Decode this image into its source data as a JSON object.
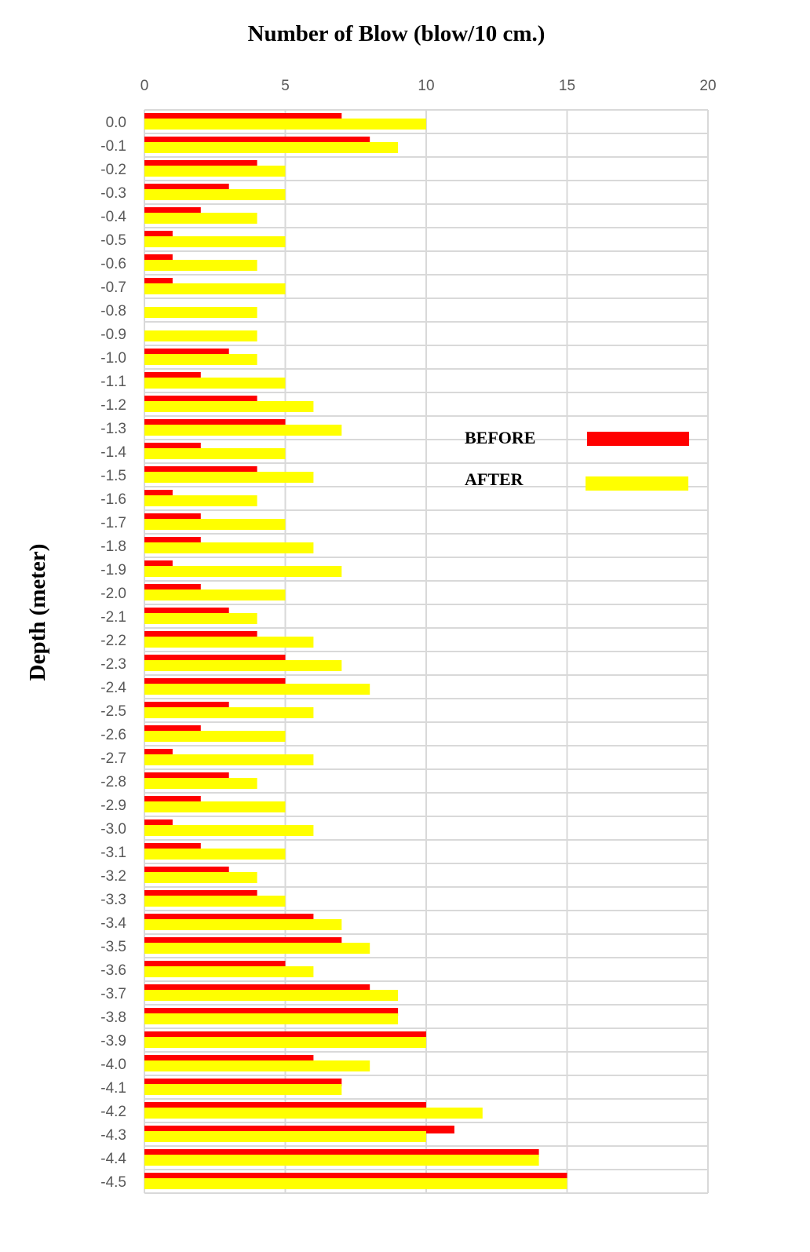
{
  "chart_data": {
    "type": "bar",
    "orientation": "horizontal",
    "title": "Number of Blow  (blow/10 cm.)",
    "xlabel": "Number of Blow  (blow/10 cm.)",
    "ylabel": "Depth (meter)",
    "xlim": [
      0,
      20
    ],
    "x_ticks": [
      "0",
      "5",
      "10",
      "15",
      "20"
    ],
    "x_axis_position": "top",
    "grid": true,
    "legend_position": "right",
    "categories": [
      "0.0",
      "-0.1",
      "-0.2",
      "-0.3",
      "-0.4",
      "-0.5",
      "-0.6",
      "-0.7",
      "-0.8",
      "-0.9",
      "-1.0",
      "-1.1",
      "-1.2",
      "-1.3",
      "-1.4",
      "-1.5",
      "-1.6",
      "-1.7",
      "-1.8",
      "-1.9",
      "-2.0",
      "-2.1",
      "-2.2",
      "-2.3",
      "-2.4",
      "-2.5",
      "-2.6",
      "-2.7",
      "-2.8",
      "-2.9",
      "-3.0",
      "-3.1",
      "-3.2",
      "-3.3",
      "-3.4",
      "-3.5",
      "-3.6",
      "-3.7",
      "-3.8",
      "-3.9",
      "-4.0",
      "-4.1",
      "-4.2",
      "-4.3",
      "-4.4",
      "-4.5"
    ],
    "series": [
      {
        "name": "BEFORE",
        "color": "#ff0000",
        "values": [
          7,
          8,
          4,
          3,
          2,
          1,
          1,
          1,
          0,
          0,
          3,
          2,
          4,
          5,
          2,
          4,
          1,
          2,
          2,
          1,
          2,
          3,
          4,
          5,
          5,
          3,
          2,
          1,
          3,
          2,
          1,
          2,
          3,
          4,
          6,
          7,
          5,
          8,
          9,
          10,
          6,
          7,
          10,
          11,
          14,
          15
        ]
      },
      {
        "name": "AFTER",
        "color": "#ffff00",
        "values": [
          10,
          9,
          5,
          5,
          4,
          5,
          4,
          5,
          4,
          4,
          4,
          5,
          6,
          7,
          5,
          6,
          4,
          5,
          6,
          7,
          5,
          4,
          6,
          7,
          8,
          6,
          5,
          6,
          4,
          5,
          6,
          5,
          4,
          5,
          7,
          8,
          6,
          9,
          9,
          10,
          8,
          7,
          12,
          10,
          14,
          15
        ]
      }
    ]
  }
}
